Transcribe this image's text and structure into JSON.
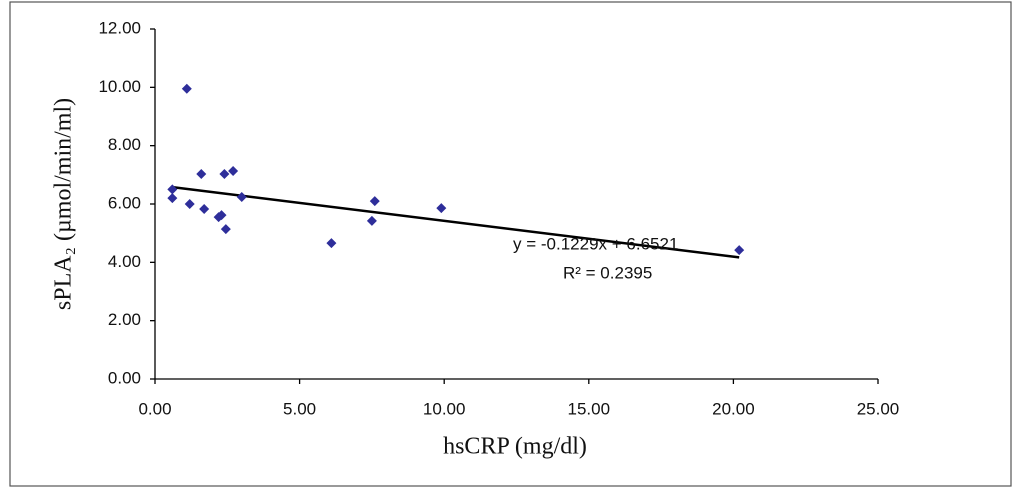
{
  "chart_data": {
    "type": "scatter",
    "x_label": "hsCRP (mg/dl)",
    "y_label": "sPLA₂ (µmol/min/ml)",
    "x": [
      0.6,
      0.6,
      1.1,
      1.2,
      1.6,
      1.7,
      2.2,
      2.3,
      2.45,
      2.4,
      2.7,
      3.0,
      6.1,
      7.5,
      7.6,
      9.9,
      20.2
    ],
    "series": [
      {
        "color": "#2e2e9a",
        "values": [
          6.5,
          6.2,
          9.95,
          6.0,
          7.03,
          5.83,
          5.55,
          5.62,
          5.14,
          7.03,
          7.13,
          6.24,
          4.66,
          5.42,
          6.1,
          5.86,
          4.42
        ]
      }
    ],
    "trendline": {
      "slope": -0.1229,
      "intercept": 6.6521,
      "color": "#000000"
    },
    "annotations": [
      "y = -0.1229x + 6.6521",
      "R² = 0.2395"
    ],
    "xlim": [
      0,
      25
    ],
    "xticks": [
      {
        "value": 0,
        "label": "0.00"
      },
      {
        "value": 5,
        "label": "5.00"
      },
      {
        "value": 10,
        "label": "10.00"
      },
      {
        "value": 15,
        "label": "15.00"
      },
      {
        "value": 20,
        "label": "20.00"
      },
      {
        "value": 25,
        "label": "25.00"
      }
    ],
    "ylim": [
      0,
      12
    ],
    "yticks": [
      {
        "value": 0,
        "label": "0.00"
      },
      {
        "value": 2,
        "label": "2.00"
      },
      {
        "value": 4,
        "label": "4.00"
      },
      {
        "value": 6,
        "label": "6.00"
      },
      {
        "value": 8,
        "label": "8.00"
      },
      {
        "value": 10,
        "label": "10.00"
      },
      {
        "value": 12,
        "label": "12.00"
      }
    ]
  }
}
